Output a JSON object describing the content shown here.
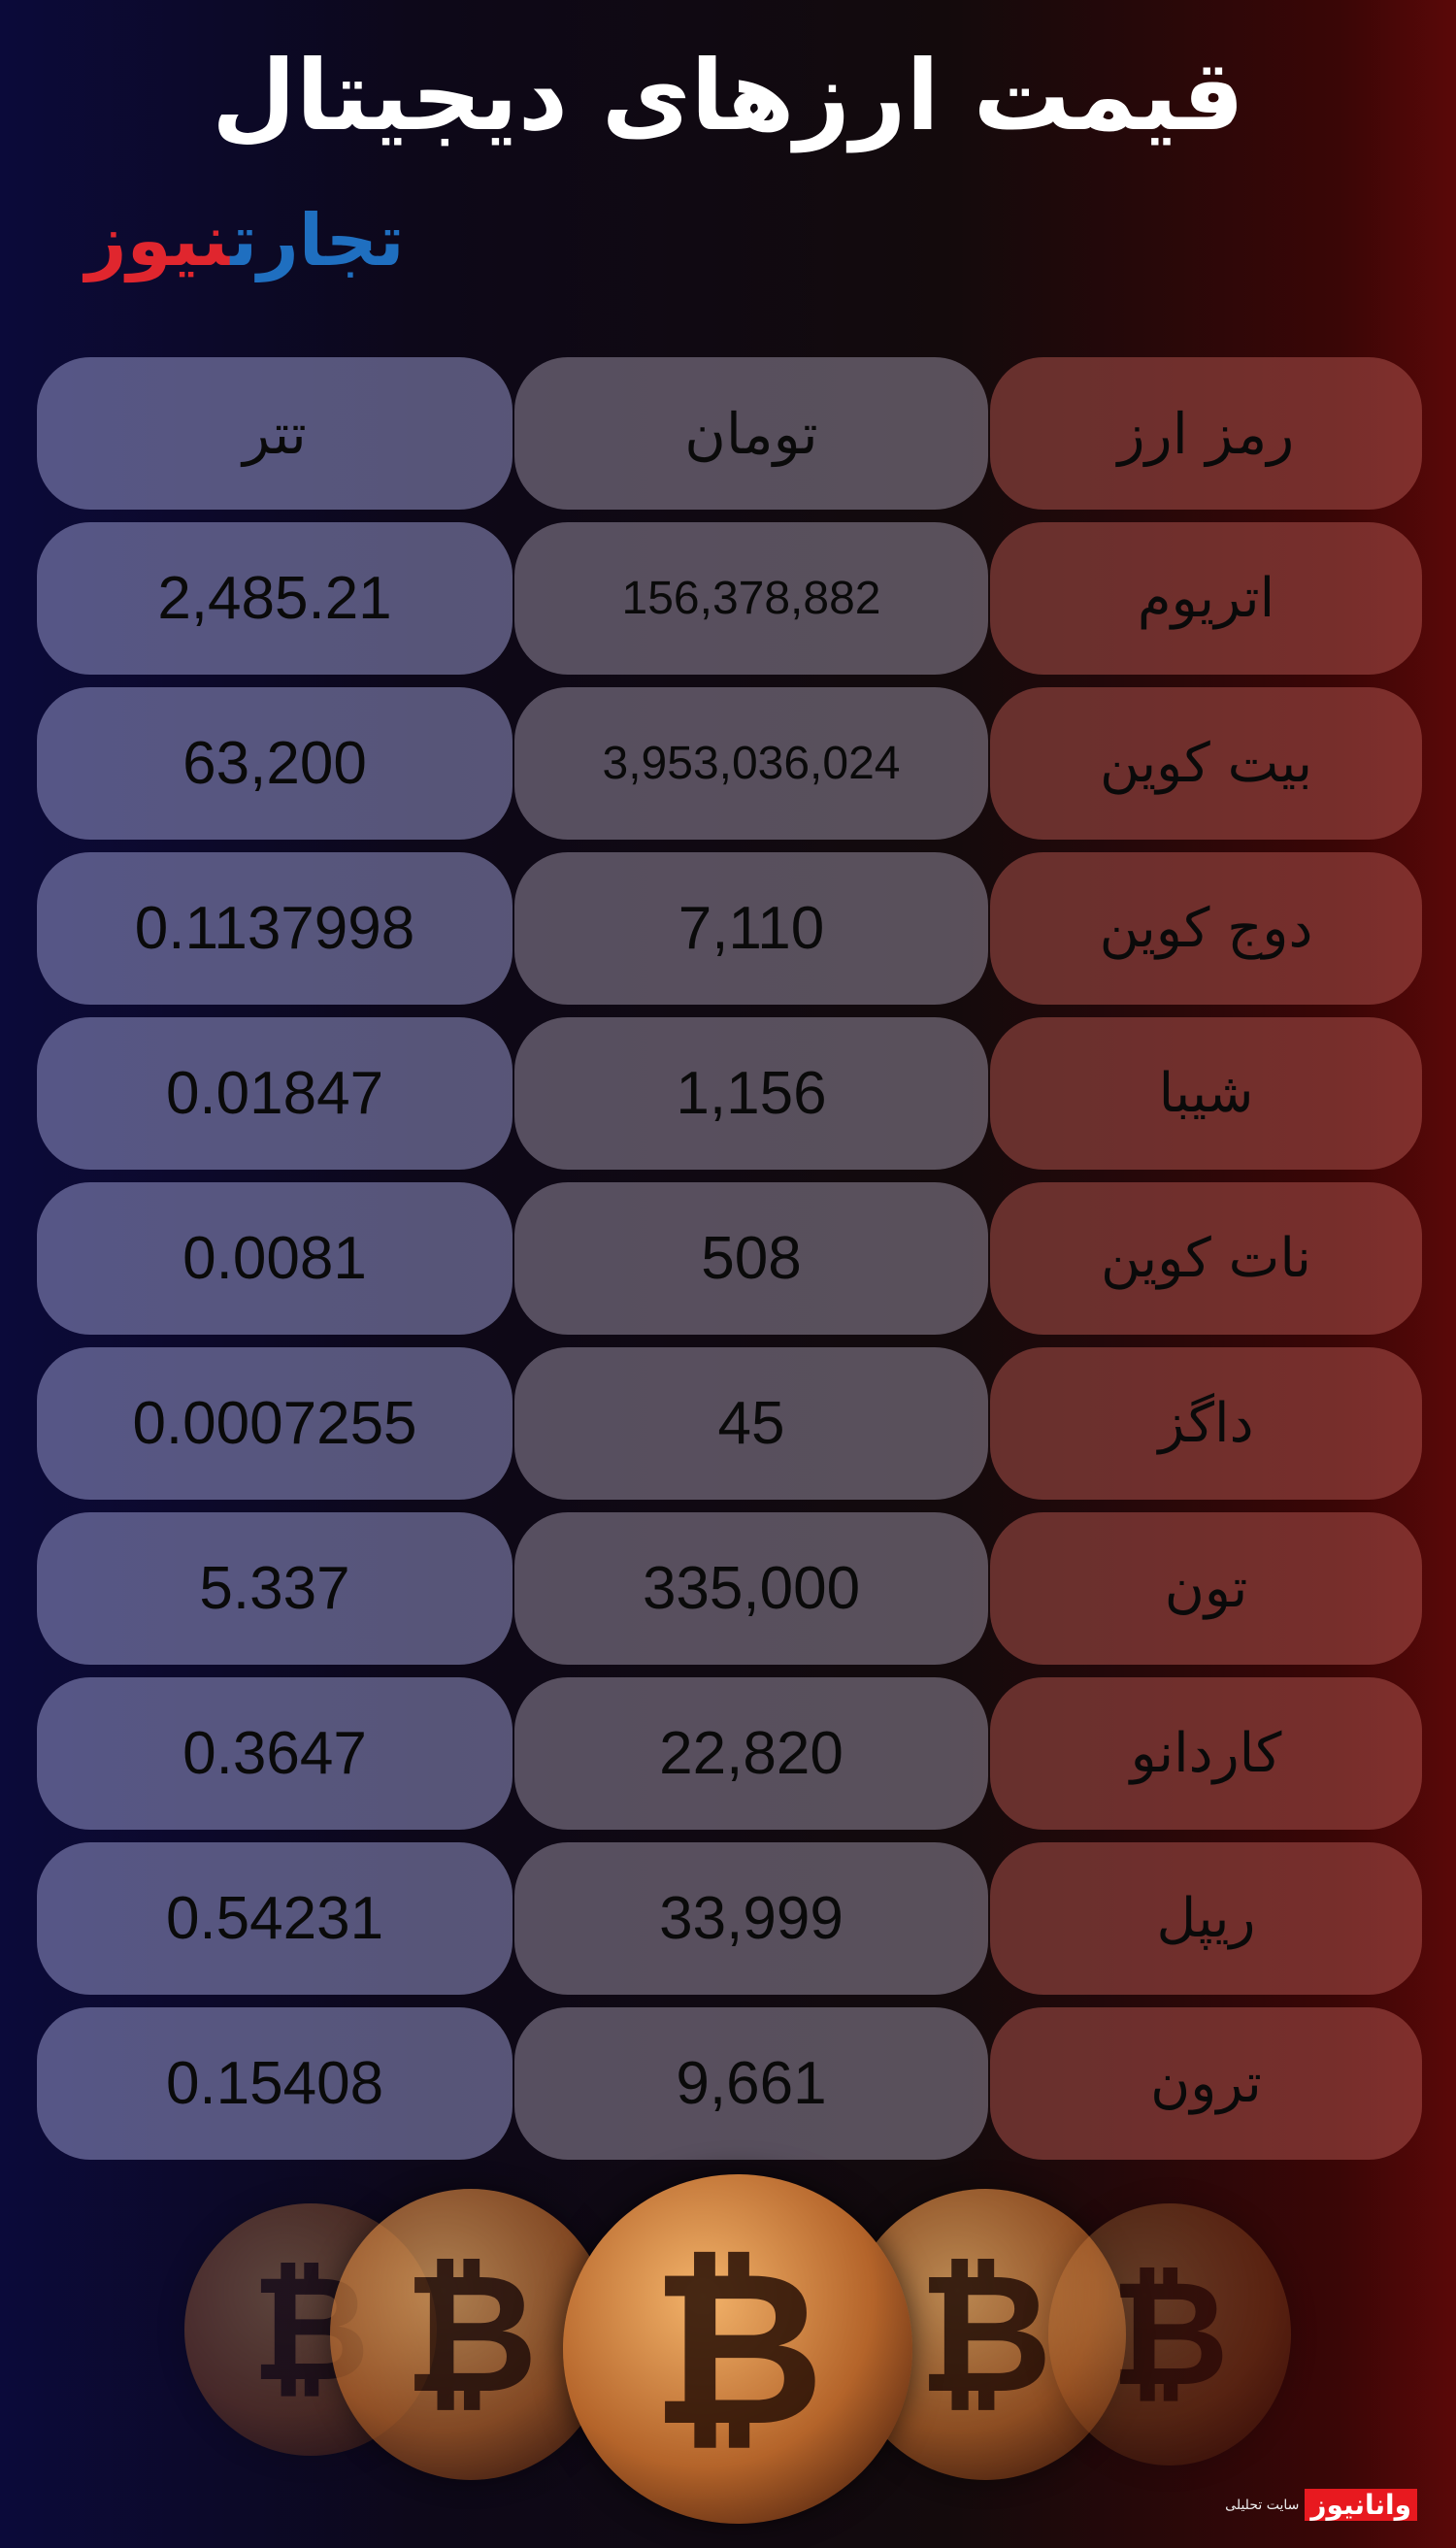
{
  "title": "قیمت ارزهای دیجیتال",
  "logo": {
    "part1": "تجارت",
    "part2": "نیوز"
  },
  "headers": {
    "tether": "تتر",
    "toman": "تومان",
    "name": "رمز ارز"
  },
  "rows": [
    {
      "name": "اتریوم",
      "toman": "156,378,882",
      "tether": "2,485.21"
    },
    {
      "name": "بیت کوین",
      "toman": "3,953,036,024",
      "tether": "63,200"
    },
    {
      "name": "دوج کوین",
      "toman": "7,110",
      "tether": "0.1137998"
    },
    {
      "name": "شیبا",
      "toman": "1,156",
      "tether": "0.01847"
    },
    {
      "name": "نات کوین",
      "toman": "508",
      "tether": "0.0081"
    },
    {
      "name": "داگز",
      "toman": "45",
      "tether": "0.0007255"
    },
    {
      "name": "تون",
      "toman": "335,000",
      "tether": "5.337"
    },
    {
      "name": "کاردانو",
      "toman": "22,820",
      "tether": "0.3647"
    },
    {
      "name": "ریپل",
      "toman": "33,999",
      "tether": "0.54231"
    },
    {
      "name": "ترون",
      "toman": "9,661",
      "tether": "0.15408"
    }
  ],
  "footer": {
    "brand": "وانانیوز",
    "tagline": "سایت تحلیلی"
  },
  "coin_symbol": "₿"
}
